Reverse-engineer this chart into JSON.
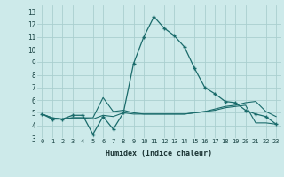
{
  "title": "",
  "xlabel": "Humidex (Indice chaleur)",
  "bg_color": "#cdeaea",
  "grid_color": "#aacfcf",
  "line_color": "#1a6b6b",
  "xlim": [
    -0.5,
    23.5
  ],
  "ylim": [
    3,
    13.5
  ],
  "yticks": [
    3,
    4,
    5,
    6,
    7,
    8,
    9,
    10,
    11,
    12,
    13
  ],
  "xticks": [
    0,
    1,
    2,
    3,
    4,
    5,
    6,
    7,
    8,
    9,
    10,
    11,
    12,
    13,
    14,
    15,
    16,
    17,
    18,
    19,
    20,
    21,
    22,
    23
  ],
  "series": [
    [
      4.9,
      4.5,
      4.5,
      4.8,
      4.8,
      3.3,
      4.7,
      3.7,
      5.0,
      8.9,
      11.0,
      12.6,
      11.7,
      11.1,
      10.2,
      8.5,
      7.0,
      6.5,
      5.9,
      5.8,
      5.2,
      4.9,
      4.7,
      4.1
    ],
    [
      4.9,
      4.6,
      4.5,
      4.6,
      4.6,
      4.6,
      6.2,
      5.1,
      5.2,
      5.0,
      4.9,
      4.9,
      4.9,
      4.9,
      4.9,
      5.0,
      5.1,
      5.3,
      5.5,
      5.6,
      5.8,
      5.9,
      5.1,
      4.7
    ],
    [
      4.9,
      4.6,
      4.5,
      4.6,
      4.6,
      4.5,
      4.8,
      4.7,
      5.0,
      4.9,
      4.9,
      4.9,
      4.9,
      4.9,
      4.9,
      5.0,
      5.1,
      5.2,
      5.4,
      5.5,
      5.6,
      4.2,
      4.2,
      4.1
    ]
  ]
}
